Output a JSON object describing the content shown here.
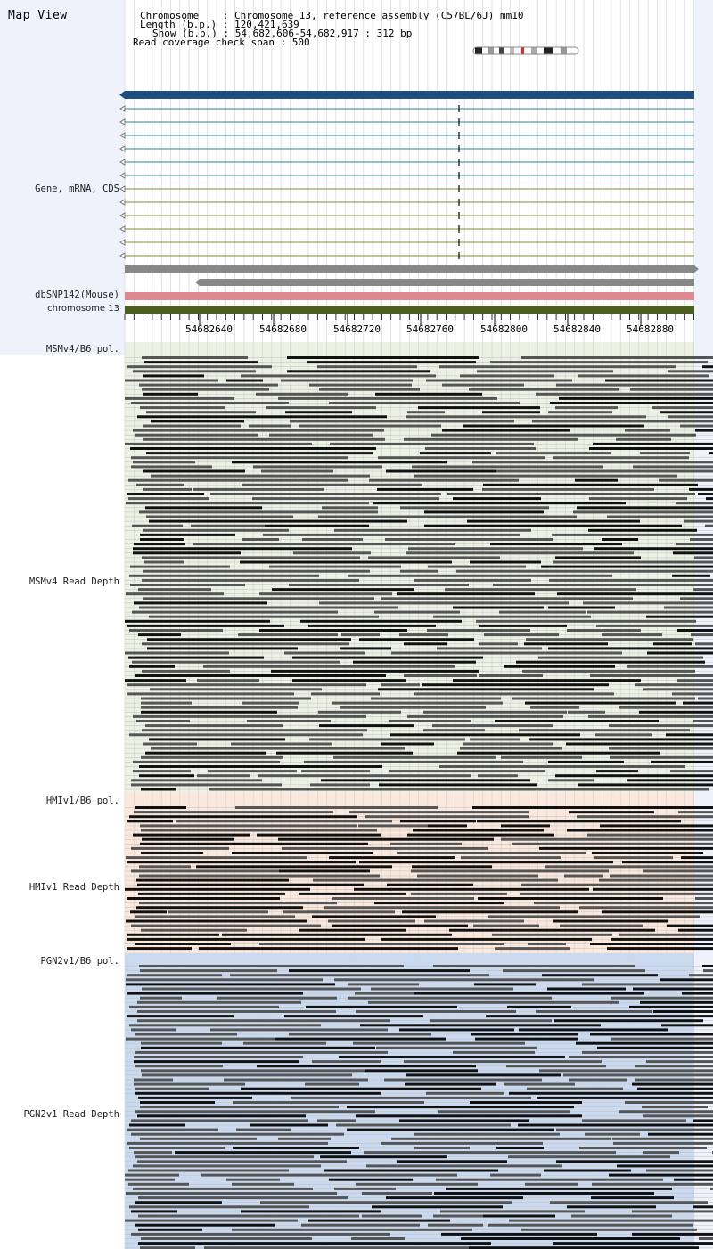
{
  "title": "Map View",
  "info": {
    "chromosome_label": "Chromosome    : Chromosome 13, reference assembly (C57BL/6J) mm10",
    "length_label": "Length (b.p.) : 120,421,639",
    "show_label": "Show (b.p.) : 54,682,606-54,682,917 : 312 bp",
    "span_label": "Read coverage check span : 500"
  },
  "tracks": {
    "gene": "Gene, mRNA, CDS",
    "dbsnp": "dbSNP142(Mouse)",
    "chromosome": "chromosome 13",
    "msm_pol": "MSMv4/B6 pol.",
    "msm_depth": "MSMv4 Read Depth",
    "hmi_pol": "HMIv1/B6 pol.",
    "hmi_depth": "HMIv1 Read Depth",
    "pgn_pol": "PGN2v1/B6 pol.",
    "pgn_depth": "PGN2v1 Read Depth"
  },
  "axis": {
    "ticks": [
      "54682640",
      "54682680",
      "54682720",
      "54682760",
      "54682800",
      "54682840",
      "54682880"
    ]
  },
  "colors": {
    "gene_main": "#1f4e80",
    "transcript_teal": "#2a8a8a",
    "transcript_olive": "#8a8a3a",
    "gray_bar": "#888888",
    "dbsnp": "#e08890",
    "chromosome": "#4a5e20",
    "msm_bg": "#edf1e4",
    "hmi_bg": "#fbe8dc",
    "pgn_bg": "#c9daf0",
    "read_dark": "#111111",
    "read_mid": "#555555"
  }
}
